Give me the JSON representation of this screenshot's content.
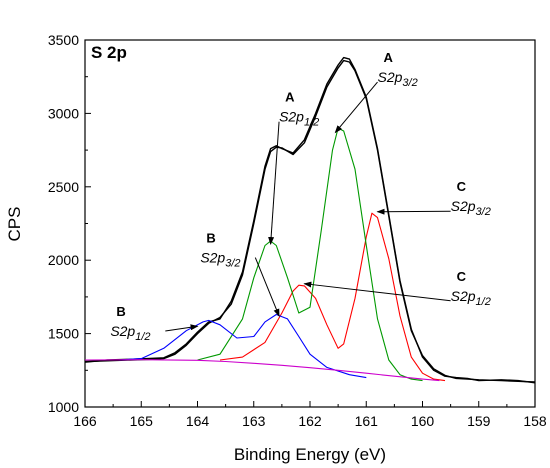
{
  "chart_data": {
    "type": "line",
    "title": "S 2p",
    "xlabel": "Binding Energy (eV)",
    "ylabel": "CPS",
    "xlim": [
      166,
      158
    ],
    "ylim": [
      1000,
      3500
    ],
    "x_reversed": true,
    "xticks": [
      166,
      165,
      164,
      163,
      162,
      161,
      160,
      159,
      158
    ],
    "yticks": [
      1000,
      1500,
      2000,
      2500,
      3000,
      3500
    ],
    "grid": false,
    "legend": "none",
    "series": [
      {
        "color": "#000000",
        "points": [
          [
            166.0,
            1310
          ],
          [
            165.6,
            1315
          ],
          [
            165.2,
            1320
          ],
          [
            164.8,
            1325
          ],
          [
            164.6,
            1330
          ],
          [
            164.4,
            1360
          ],
          [
            164.2,
            1420
          ],
          [
            164.0,
            1500
          ],
          [
            163.8,
            1570
          ],
          [
            163.6,
            1610
          ],
          [
            163.4,
            1700
          ],
          [
            163.2,
            1900
          ],
          [
            163.0,
            2250
          ],
          [
            162.8,
            2620
          ],
          [
            162.7,
            2740
          ],
          [
            162.6,
            2770
          ],
          [
            162.5,
            2765
          ],
          [
            162.3,
            2720
          ],
          [
            162.1,
            2800
          ],
          [
            161.9,
            2980
          ],
          [
            161.7,
            3180
          ],
          [
            161.5,
            3310
          ],
          [
            161.4,
            3360
          ],
          [
            161.3,
            3350
          ],
          [
            161.2,
            3290
          ],
          [
            161.0,
            3100
          ],
          [
            160.8,
            2750
          ],
          [
            160.6,
            2300
          ],
          [
            160.4,
            1850
          ],
          [
            160.2,
            1520
          ],
          [
            160.0,
            1350
          ],
          [
            159.8,
            1260
          ],
          [
            159.6,
            1215
          ],
          [
            159.4,
            1195
          ],
          [
            159.2,
            1190
          ],
          [
            159.0,
            1185
          ],
          [
            158.6,
            1180
          ],
          [
            158.3,
            1175
          ],
          [
            158.0,
            1170
          ]
        ]
      },
      {
        "color": "#000000",
        "points": [
          [
            166.0,
            1305
          ],
          [
            165.6,
            1320
          ],
          [
            165.2,
            1325
          ],
          [
            164.9,
            1330
          ],
          [
            164.6,
            1335
          ],
          [
            164.4,
            1370
          ],
          [
            164.2,
            1430
          ],
          [
            164.0,
            1510
          ],
          [
            163.8,
            1580
          ],
          [
            163.6,
            1600
          ],
          [
            163.4,
            1720
          ],
          [
            163.2,
            1920
          ],
          [
            163.0,
            2270
          ],
          [
            162.8,
            2640
          ],
          [
            162.7,
            2760
          ],
          [
            162.6,
            2780
          ],
          [
            162.5,
            2760
          ],
          [
            162.3,
            2730
          ],
          [
            162.1,
            2820
          ],
          [
            161.9,
            3000
          ],
          [
            161.7,
            3200
          ],
          [
            161.5,
            3330
          ],
          [
            161.4,
            3380
          ],
          [
            161.3,
            3370
          ],
          [
            161.2,
            3300
          ],
          [
            161.0,
            3110
          ],
          [
            160.8,
            2760
          ],
          [
            160.6,
            2310
          ],
          [
            160.4,
            1860
          ],
          [
            160.2,
            1530
          ],
          [
            160.0,
            1340
          ],
          [
            159.8,
            1250
          ],
          [
            159.6,
            1210
          ],
          [
            159.4,
            1200
          ],
          [
            159.2,
            1195
          ],
          [
            159.0,
            1180
          ],
          [
            158.6,
            1185
          ],
          [
            158.3,
            1180
          ],
          [
            158.0,
            1165
          ]
        ]
      },
      {
        "color": "#ff0000",
        "points": [
          [
            163.6,
            1320
          ],
          [
            163.2,
            1340
          ],
          [
            162.8,
            1440
          ],
          [
            162.5,
            1640
          ],
          [
            162.3,
            1790
          ],
          [
            162.2,
            1830
          ],
          [
            162.1,
            1825
          ],
          [
            161.9,
            1740
          ],
          [
            161.7,
            1560
          ],
          [
            161.5,
            1400
          ],
          [
            161.4,
            1430
          ],
          [
            161.2,
            1740
          ],
          [
            161.0,
            2160
          ],
          [
            160.9,
            2320
          ],
          [
            160.8,
            2290
          ],
          [
            160.6,
            2010
          ],
          [
            160.4,
            1620
          ],
          [
            160.2,
            1340
          ],
          [
            160.0,
            1230
          ],
          [
            159.8,
            1190
          ],
          [
            159.6,
            1180
          ]
        ]
      },
      {
        "color": "#009900",
        "points": [
          [
            164.0,
            1320
          ],
          [
            163.6,
            1360
          ],
          [
            163.2,
            1600
          ],
          [
            163.0,
            1880
          ],
          [
            162.8,
            2100
          ],
          [
            162.7,
            2130
          ],
          [
            162.6,
            2100
          ],
          [
            162.4,
            1880
          ],
          [
            162.2,
            1640
          ],
          [
            162.0,
            1680
          ],
          [
            161.8,
            2200
          ],
          [
            161.6,
            2750
          ],
          [
            161.5,
            2900
          ],
          [
            161.4,
            2880
          ],
          [
            161.2,
            2620
          ],
          [
            161.0,
            2100
          ],
          [
            160.8,
            1600
          ],
          [
            160.6,
            1320
          ],
          [
            160.4,
            1220
          ],
          [
            160.2,
            1190
          ],
          [
            160.0,
            1180
          ]
        ]
      },
      {
        "color": "#0000ff",
        "points": [
          [
            165.4,
            1320
          ],
          [
            165.0,
            1330
          ],
          [
            164.6,
            1400
          ],
          [
            164.2,
            1520
          ],
          [
            163.9,
            1580
          ],
          [
            163.8,
            1590
          ],
          [
            163.6,
            1560
          ],
          [
            163.3,
            1470
          ],
          [
            163.0,
            1480
          ],
          [
            162.8,
            1580
          ],
          [
            162.6,
            1630
          ],
          [
            162.4,
            1600
          ],
          [
            162.2,
            1480
          ],
          [
            162.0,
            1360
          ],
          [
            161.7,
            1270
          ],
          [
            161.3,
            1220
          ],
          [
            161.0,
            1200
          ]
        ]
      },
      {
        "color": "#cc00cc",
        "points": [
          [
            166.0,
            1320
          ],
          [
            165.0,
            1322
          ],
          [
            164.0,
            1318
          ],
          [
            163.5,
            1310
          ],
          [
            163.0,
            1298
          ],
          [
            162.5,
            1284
          ],
          [
            162.0,
            1268
          ],
          [
            161.5,
            1250
          ],
          [
            161.0,
            1230
          ],
          [
            160.5,
            1210
          ],
          [
            160.0,
            1190
          ],
          [
            159.7,
            1180
          ]
        ]
      }
    ],
    "annotations": [
      {
        "letter": "A",
        "orbital": "S2p",
        "sub": "1/2",
        "tx": 162.55,
        "ty": 3080,
        "ax": 162.7,
        "ay": 2110
      },
      {
        "letter": "A",
        "orbital": "S2p",
        "sub": "3/2",
        "tx": 160.8,
        "ty": 3350,
        "ax": 161.55,
        "ay": 2870
      },
      {
        "letter": "B",
        "orbital": "S2p",
        "sub": "3/2",
        "tx": 163.95,
        "ty": 2120,
        "ax": 162.55,
        "ay": 1620
      },
      {
        "letter": "B",
        "orbital": "S2p",
        "sub": "1/2",
        "tx": 165.55,
        "ty": 1620,
        "ax": 164.0,
        "ay": 1550
      },
      {
        "letter": "C",
        "orbital": "S2p",
        "sub": "3/2",
        "tx": 159.5,
        "ty": 2470,
        "ax": 160.8,
        "ay": 2330
      },
      {
        "letter": "C",
        "orbital": "S2p",
        "sub": "1/2",
        "tx": 159.5,
        "ty": 1860,
        "ax": 162.1,
        "ay": 1840
      }
    ]
  }
}
